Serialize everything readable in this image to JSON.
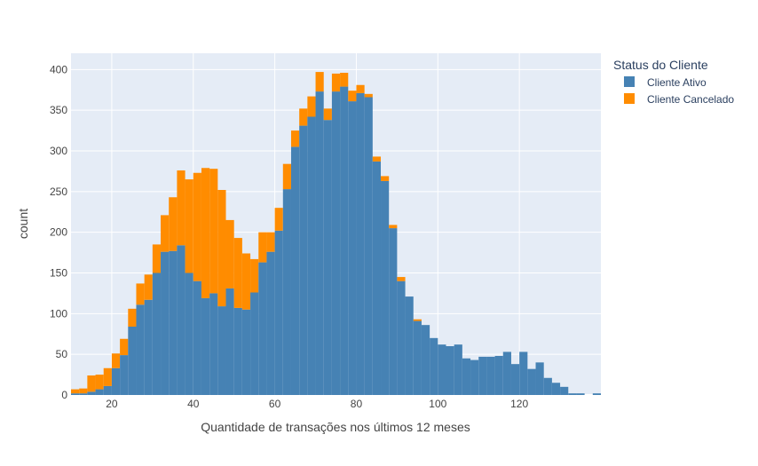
{
  "chart_data": {
    "type": "bar",
    "subtype": "stacked-histogram",
    "title": "",
    "xlabel": "Quantidade de transações nos últimos 12 meses",
    "ylabel": "count",
    "xlim": [
      10,
      140
    ],
    "ylim": [
      0,
      420
    ],
    "bin_width": 2,
    "x_ticks": [
      20,
      40,
      60,
      80,
      100,
      120
    ],
    "y_ticks": [
      0,
      50,
      100,
      150,
      200,
      250,
      300,
      350,
      400
    ],
    "grid": true,
    "background": "#e5ecf6",
    "legend_title": "Status do Cliente",
    "legend_position": "right",
    "bin_starts": [
      10,
      12,
      14,
      16,
      18,
      20,
      22,
      24,
      26,
      28,
      30,
      32,
      34,
      36,
      38,
      40,
      42,
      44,
      46,
      48,
      50,
      52,
      54,
      56,
      58,
      60,
      62,
      64,
      66,
      68,
      70,
      72,
      74,
      76,
      78,
      80,
      82,
      84,
      86,
      88,
      90,
      92,
      94,
      96,
      98,
      100,
      102,
      104,
      106,
      108,
      110,
      112,
      114,
      116,
      118,
      120,
      122,
      124,
      126,
      128,
      130,
      132,
      134,
      136,
      138
    ],
    "series": [
      {
        "name": "Cliente Ativo",
        "color": "#4682b4",
        "values": [
          2,
          2,
          4,
          7,
          11,
          33,
          49,
          84,
          111,
          117,
          150,
          176,
          177,
          184,
          150,
          140,
          119,
          125,
          109,
          131,
          107,
          105,
          126,
          163,
          176,
          202,
          253,
          305,
          331,
          342,
          373,
          338,
          373,
          379,
          361,
          371,
          366,
          287,
          263,
          205,
          140,
          121,
          91,
          86,
          70,
          62,
          60,
          62,
          45,
          43,
          47,
          47,
          48,
          53,
          38,
          53,
          32,
          40,
          21,
          15,
          10,
          2,
          2,
          0,
          2
        ]
      },
      {
        "name": "Cliente Cancelado",
        "color": "#ff8c00",
        "values": [
          5,
          6,
          20,
          18,
          22,
          18,
          20,
          22,
          26,
          31,
          35,
          45,
          66,
          92,
          115,
          133,
          160,
          153,
          143,
          84,
          86,
          69,
          41,
          37,
          24,
          28,
          31,
          20,
          21,
          25,
          24,
          14,
          22,
          17,
          13,
          10,
          4,
          6,
          6,
          4,
          5,
          0,
          2,
          0,
          0,
          0,
          0,
          0,
          0,
          0,
          0,
          0,
          0,
          0,
          0,
          0,
          0,
          0,
          0,
          0,
          0,
          0,
          0,
          0,
          0
        ]
      }
    ]
  }
}
